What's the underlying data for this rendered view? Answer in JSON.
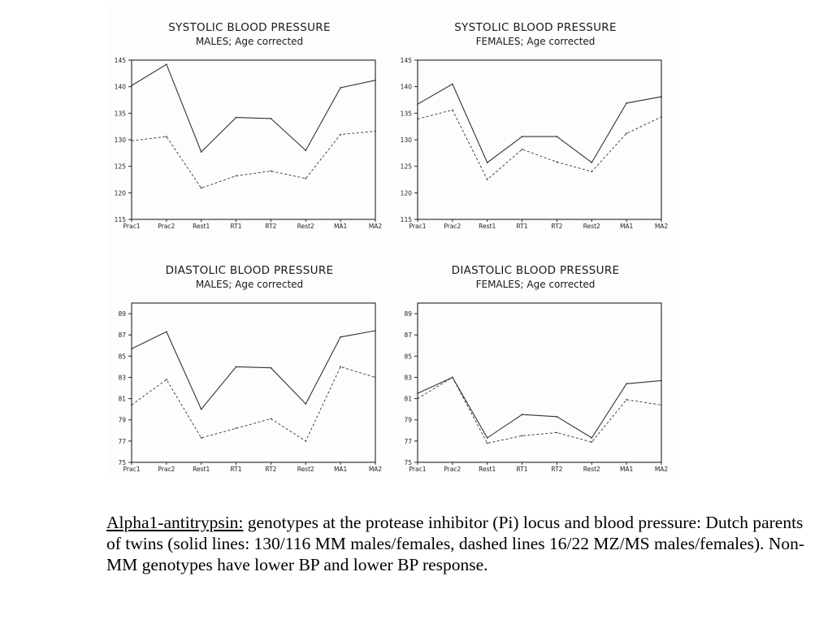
{
  "chart_data": [
    {
      "type": "line",
      "title": "SYSTOLIC BLOOD PRESSURE",
      "subtitle": "MALES; Age corrected",
      "categories": [
        "Prac1",
        "Prac2",
        "Rest1",
        "RT1",
        "RT2",
        "Rest2",
        "MA1",
        "MA2"
      ],
      "ylim": [
        115,
        145
      ],
      "yticks": [
        115,
        120,
        125,
        130,
        135,
        140,
        145
      ],
      "grid": false,
      "series": [
        {
          "style": "solid",
          "values": [
            140.2,
            144.2,
            127.7,
            134.2,
            134.0,
            128.0,
            139.8,
            141.2
          ]
        },
        {
          "style": "dashed",
          "values": [
            129.8,
            130.6,
            120.9,
            123.2,
            124.1,
            122.7,
            131.0,
            131.6
          ]
        }
      ]
    },
    {
      "type": "line",
      "title": "SYSTOLIC BLOOD PRESSURE",
      "subtitle": "FEMALES; Age corrected",
      "categories": [
        "Prac1",
        "Prac2",
        "Rest1",
        "RT1",
        "RT2",
        "Rest2",
        "MA1",
        "MA2"
      ],
      "ylim": [
        115,
        145
      ],
      "yticks": [
        115,
        120,
        125,
        130,
        135,
        140,
        145
      ],
      "grid": false,
      "series": [
        {
          "style": "solid",
          "values": [
            136.7,
            140.5,
            125.7,
            130.6,
            130.6,
            125.7,
            136.9,
            138.1
          ]
        },
        {
          "style": "dashed",
          "values": [
            133.9,
            135.6,
            122.5,
            128.2,
            125.8,
            124.0,
            131.2,
            134.3
          ]
        }
      ]
    },
    {
      "type": "line",
      "title": "DIASTOLIC BLOOD PRESSURE",
      "subtitle": "MALES; Age corrected",
      "categories": [
        "Prac1",
        "Prac2",
        "Rest1",
        "RT1",
        "RT2",
        "Rest2",
        "MA1",
        "MA2"
      ],
      "ylim": [
        75,
        90
      ],
      "yticks": [
        75,
        77,
        79,
        81,
        83,
        85,
        87,
        89
      ],
      "grid": false,
      "series": [
        {
          "style": "solid",
          "values": [
            85.7,
            87.3,
            80.0,
            84.0,
            83.9,
            80.5,
            86.8,
            87.4
          ]
        },
        {
          "style": "dashed",
          "values": [
            80.4,
            82.8,
            77.3,
            78.2,
            79.1,
            77.0,
            84.0,
            83.0
          ]
        }
      ]
    },
    {
      "type": "line",
      "title": "DIASTOLIC BLOOD PRESSURE",
      "subtitle": "FEMALES; Age corrected",
      "categories": [
        "Prac1",
        "Prac2",
        "Rest1",
        "RT1",
        "RT2",
        "Rest2",
        "MA1",
        "MA2"
      ],
      "ylim": [
        75,
        90
      ],
      "yticks": [
        75,
        77,
        79,
        81,
        83,
        85,
        87,
        89
      ],
      "grid": false,
      "series": [
        {
          "style": "solid",
          "values": [
            81.5,
            83.0,
            77.3,
            79.5,
            79.3,
            77.3,
            82.4,
            82.7
          ]
        },
        {
          "style": "dashed",
          "values": [
            81.0,
            83.0,
            76.8,
            77.5,
            77.8,
            76.9,
            80.9,
            80.4
          ]
        }
      ]
    }
  ],
  "caption": {
    "term": "Alpha1-antitrypsin:",
    "text": " genotypes at the protease inhibitor (Pi) locus and blood pressure: Dutch parents of twins (solid lines: 130/116 MM males/females, dashed lines 16/22 MZ/MS males/females). Non-MM genotypes have lower BP and lower BP response."
  }
}
